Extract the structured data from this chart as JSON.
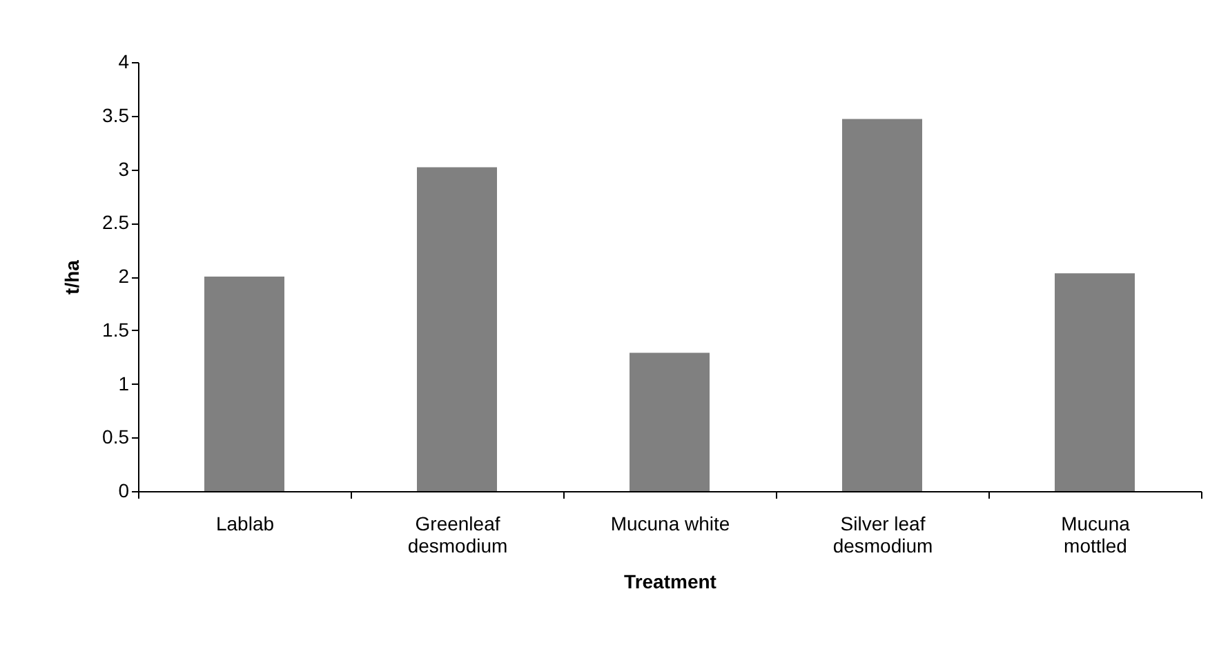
{
  "chart_data": {
    "type": "bar",
    "xlabel": "Treatment",
    "ylabel": "t/ha",
    "categories": [
      "Lablab",
      "Greenleaf desmodium",
      "Mucuna white",
      "Silver leaf desmodium",
      "Mucuna mottled"
    ],
    "values": [
      2.0,
      3.02,
      1.29,
      3.47,
      2.03
    ],
    "color": "#808080",
    "ylim": [
      0,
      4
    ],
    "yticks": [
      0,
      0.5,
      1,
      1.5,
      2,
      2.5,
      3,
      3.5,
      4
    ],
    "grid": false
  }
}
